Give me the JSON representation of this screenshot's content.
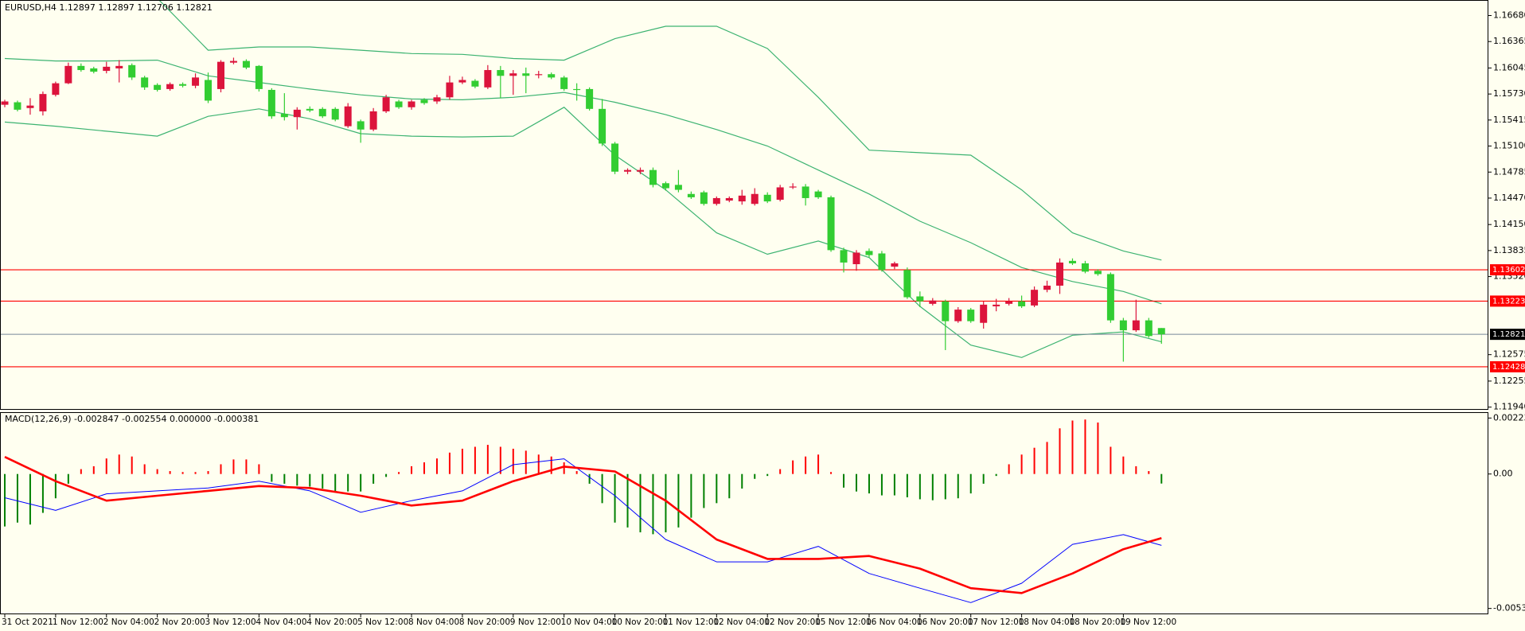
{
  "chart_data": [
    {
      "type": "candlestick",
      "title": "EURUSD,H4  1.12897 1.12897 1.12706 1.12821",
      "categories": [
        "31 Oct 2021",
        null,
        null,
        null,
        "1 Nov 12:00",
        null,
        null,
        null,
        "2 Nov 04:00",
        null,
        null,
        null,
        "2 Nov 20:00",
        null,
        null,
        null,
        "3 Nov 12:00",
        null,
        null,
        null,
        "4 Nov 04:00",
        null,
        null,
        null,
        "4 Nov 20:00",
        null,
        null,
        null,
        "5 Nov 12:00",
        null,
        null,
        null,
        "8 Nov 04:00",
        null,
        null,
        null,
        "8 Nov 20:00",
        null,
        null,
        null,
        "9 Nov 12:00",
        null,
        null,
        null,
        "10 Nov 04:00",
        null,
        null,
        null,
        "10 Nov 20:00",
        null,
        null,
        null,
        "11 Nov 12:00",
        null,
        null,
        null,
        "12 Nov 04:00",
        null,
        null,
        null,
        "12 Nov 20:00",
        null,
        null,
        null,
        "15 Nov 12:00",
        null,
        null,
        null,
        "16 Nov 04:00",
        null,
        null,
        null,
        "16 Nov 20:00",
        null,
        null,
        null,
        "17 Nov 12:00",
        null,
        null,
        null,
        "18 Nov 04:00",
        null,
        null,
        null,
        "18 Nov 20:00",
        null,
        null,
        null,
        "19 Nov 12:00",
        null,
        null,
        null
      ],
      "open": [
        1.156,
        1.1563,
        1.1556,
        1.1552,
        1.1572,
        1.1586,
        1.1607,
        1.1604,
        1.1601,
        1.1604,
        1.1608,
        1.1593,
        1.1584,
        1.1579,
        1.1585,
        1.1583,
        1.159,
        1.1579,
        1.1611,
        1.1613,
        1.1607,
        1.1578,
        1.1549,
        1.1545,
        1.1555,
        1.1555,
        1.1555,
        1.1534,
        1.154,
        1.153,
        1.1552,
        1.1564,
        1.1557,
        1.1566,
        1.1564,
        1.1569,
        1.1587,
        1.1589,
        1.1581,
        1.1602,
        1.1595,
        1.1598,
        1.1596,
        1.1597,
        1.1593,
        1.1579,
        1.1579,
        1.1555,
        1.1513,
        1.1479,
        1.1479,
        1.1481,
        1.1465,
        1.1463,
        1.1452,
        1.1454,
        1.144,
        1.1444,
        1.1443,
        1.144,
        1.1451,
        1.1445,
        1.146,
        1.1461,
        1.1455,
        1.1448,
        1.1384,
        1.1367,
        1.1383,
        1.138,
        1.1364,
        1.136,
        1.1328,
        1.1319,
        1.1322,
        1.1298,
        1.1312,
        1.1296,
        1.1316,
        1.1319,
        1.1322,
        1.1317,
        1.1336,
        1.1341,
        1.1371,
        1.1368,
        1.1359,
        1.1355,
        1.1299,
        1.1287,
        1.1299,
        1.12897
      ],
      "high": [
        1.1566,
        1.1565,
        1.1568,
        1.1576,
        1.1588,
        1.1611,
        1.161,
        1.1606,
        1.1612,
        1.1614,
        1.161,
        1.1595,
        1.1586,
        1.1587,
        1.1587,
        1.1598,
        1.1599,
        1.1614,
        1.1617,
        1.1615,
        1.1608,
        1.158,
        1.1574,
        1.1557,
        1.1558,
        1.1557,
        1.1557,
        1.1562,
        1.1542,
        1.1556,
        1.1572,
        1.1566,
        1.1566,
        1.1568,
        1.1572,
        1.1595,
        1.1594,
        1.1591,
        1.1608,
        1.1607,
        1.1602,
        1.1605,
        1.1601,
        1.1599,
        1.1595,
        1.1586,
        1.1581,
        1.1567,
        1.1515,
        1.1483,
        1.1484,
        1.1484,
        1.1467,
        1.1481,
        1.1455,
        1.1456,
        1.1449,
        1.1449,
        1.1457,
        1.1459,
        1.1454,
        1.1463,
        1.1465,
        1.1464,
        1.1457,
        1.145,
        1.1387,
        1.1384,
        1.1386,
        1.1383,
        1.137,
        1.1363,
        1.1334,
        1.1326,
        1.1324,
        1.1315,
        1.1314,
        1.1322,
        1.1325,
        1.1326,
        1.1329,
        1.134,
        1.1347,
        1.1374,
        1.1374,
        1.1371,
        1.1361,
        1.1357,
        1.1302,
        1.1324,
        1.1302,
        1.12897
      ],
      "low": [
        1.1557,
        1.1552,
        1.1548,
        1.1547,
        1.157,
        1.1585,
        1.16,
        1.1598,
        1.1598,
        1.1587,
        1.159,
        1.1578,
        1.1576,
        1.1577,
        1.1581,
        1.158,
        1.1562,
        1.1575,
        1.1609,
        1.1603,
        1.1576,
        1.1543,
        1.1541,
        1.153,
        1.1551,
        1.1544,
        1.154,
        1.1532,
        1.1514,
        1.1528,
        1.155,
        1.1555,
        1.1554,
        1.156,
        1.1561,
        1.1566,
        1.1585,
        1.158,
        1.1579,
        1.1568,
        1.1572,
        1.1574,
        1.1592,
        1.1591,
        1.1577,
        1.1565,
        1.1553,
        1.151,
        1.1476,
        1.1476,
        1.1476,
        1.146,
        1.1456,
        1.1454,
        1.1446,
        1.1438,
        1.1438,
        1.1442,
        1.1439,
        1.1438,
        1.1441,
        1.1443,
        1.1458,
        1.1438,
        1.1446,
        1.1382,
        1.1357,
        1.1359,
        1.1375,
        1.1358,
        1.1361,
        1.1325,
        1.1315,
        1.1317,
        1.1263,
        1.1296,
        1.1296,
        1.1289,
        1.131,
        1.1317,
        1.1314,
        1.1315,
        1.1333,
        1.1331,
        1.1366,
        1.1356,
        1.1353,
        1.1296,
        1.1249,
        1.1285,
        1.1278,
        1.12706
      ],
      "close": [
        1.1564,
        1.1554,
        1.1559,
        1.1573,
        1.1586,
        1.1607,
        1.1602,
        1.16,
        1.1606,
        1.1607,
        1.1593,
        1.1581,
        1.1578,
        1.1585,
        1.1583,
        1.1593,
        1.1565,
        1.1612,
        1.1613,
        1.1605,
        1.1579,
        1.1546,
        1.1545,
        1.1554,
        1.1553,
        1.1546,
        1.1542,
        1.1558,
        1.153,
        1.1552,
        1.1569,
        1.1557,
        1.1564,
        1.1562,
        1.1569,
        1.1587,
        1.159,
        1.1582,
        1.1602,
        1.1595,
        1.1598,
        1.1595,
        1.1597,
        1.1593,
        1.1579,
        1.1578,
        1.1555,
        1.1513,
        1.1479,
        1.1481,
        1.1481,
        1.1463,
        1.1459,
        1.1457,
        1.1448,
        1.144,
        1.1447,
        1.1447,
        1.145,
        1.1452,
        1.1443,
        1.146,
        1.1461,
        1.1447,
        1.1448,
        1.1384,
        1.1369,
        1.1381,
        1.1378,
        1.136,
        1.1368,
        1.1327,
        1.1322,
        1.1323,
        1.1298,
        1.1312,
        1.1298,
        1.1318,
        1.1318,
        1.1322,
        1.1316,
        1.1336,
        1.1341,
        1.1369,
        1.1368,
        1.1358,
        1.1355,
        1.1299,
        1.1287,
        1.1299,
        1.128,
        1.12821
      ],
      "up_color": "#dc143c",
      "down_color": "#32cd32",
      "bands": {
        "x": [
          0,
          4,
          8,
          12,
          16,
          20,
          24,
          28,
          32,
          36,
          40,
          44,
          48,
          52,
          56,
          60,
          64,
          68,
          72,
          76,
          80,
          84,
          88,
          91
        ],
        "color": "#3cb371",
        "lines": [
          [
            1.1692,
            1.1694,
            1.1693,
            1.1689,
            1.1626,
            1.163,
            1.163,
            1.1626,
            1.1622,
            1.1621,
            1.1616,
            1.1614,
            1.164,
            1.1655,
            1.1655,
            1.1628,
            1.1569,
            1.1505,
            1.1502,
            1.1499,
            1.1457,
            1.1405,
            1.1383,
            1.1372
          ],
          [
            1.1616,
            1.1613,
            1.1613,
            1.1614,
            1.1595,
            1.1587,
            1.1579,
            1.1572,
            1.1567,
            1.1566,
            1.1569,
            1.1575,
            1.1563,
            1.1548,
            1.153,
            1.151,
            1.1481,
            1.1452,
            1.1419,
            1.1393,
            1.1363,
            1.1346,
            1.1334,
            1.1319
          ],
          [
            1.1539,
            1.1534,
            1.1528,
            1.1522,
            1.1546,
            1.1555,
            1.1543,
            1.1525,
            1.1522,
            1.1521,
            1.1522,
            1.1557,
            1.1499,
            1.1457,
            1.1405,
            1.1379,
            1.1395,
            1.1375,
            1.1316,
            1.1269,
            1.1254,
            1.1281,
            1.1285,
            1.1273
          ]
        ]
      },
      "levels": [
        {
          "value": 1.13602,
          "color": "#ff0000"
        },
        {
          "value": 1.13223,
          "color": "#ff0000"
        },
        {
          "value": 1.12428,
          "color": "#ff0000"
        }
      ],
      "current_line_color": "#778899",
      "ylim": [
        1.11917,
        1.16868
      ],
      "yticks": [
        {
          "value": 1.1668,
          "label": "1.16680"
        },
        1.16365,
        1.16045,
        {
          "value": 1.1573,
          "label": "1.15730"
        },
        1.15415,
        {
          "value": 1.151,
          "label": "1.15100"
        },
        1.14785,
        {
          "value": 1.1447,
          "label": "1.14470"
        },
        {
          "value": 1.1415,
          "label": "1.14150"
        },
        1.13835,
        {
          "value": 1.1352,
          "label": "1.13520"
        },
        1.12575,
        1.12255,
        {
          "value": 1.1194,
          "label": "1.11940"
        }
      ]
    },
    {
      "type": "macd",
      "title": "MACD(12,26,9) -0.002847 -0.002554 0.000000 -0.000381",
      "histogram": [
        -0.002093,
        -0.001938,
        -0.002016,
        -0.00155,
        -0.000969,
        -0.000388,
        0.000194,
        0.00031,
        0.00062,
        0.000775,
        0.000698,
        0.000388,
        0.000194,
        0.000116,
        7.8e-05,
        7.8e-05,
        0.000116,
        0.000388,
        0.000581,
        0.000581,
        0.000388,
        -0.00031,
        -0.000388,
        -0.000465,
        -0.000504,
        -0.000581,
        -0.000698,
        -0.000698,
        -0.000698,
        -0.000388,
        -0.000116,
        7.8e-05,
        0.00031,
        0.000465,
        0.00062,
        0.000853,
        0.001008,
        0.001085,
        0.001163,
        0.001085,
        0.001008,
        0.00093,
        0.000775,
        0.000698,
        0.000465,
        0.000116,
        -0.000388,
        -0.001163,
        -0.001938,
        -0.002132,
        -0.002326,
        -0.002403,
        -0.002326,
        -0.002132,
        -0.001744,
        -0.001357,
        -0.001163,
        -0.000969,
        -0.000581,
        -0.000194,
        -7.8e-05,
        0.000194,
        0.000543,
        0.000698,
        0.000775,
        7.8e-05,
        -0.000543,
        -0.000698,
        -0.000775,
        -0.000853,
        -0.000853,
        -0.00093,
        -0.001008,
        -0.001047,
        -0.001008,
        -0.000969,
        -0.000775,
        -0.000388,
        -7.8e-05,
        0.000388,
        0.000775,
        0.001047,
        0.001279,
        0.001822,
        0.002132,
        0.002171,
        0.002054,
        0.001085,
        0.000698,
        0.00031,
        0.000116,
        -0.000381
      ],
      "up_color": "#ff0000",
      "down_color": "#008000",
      "x": [
        0,
        4,
        8,
        12,
        16,
        20,
        24,
        28,
        32,
        36,
        40,
        44,
        48,
        52,
        56,
        60,
        64,
        68,
        72,
        76,
        80,
        84,
        88,
        91
      ],
      "series": [
        {
          "color": "#0000ff",
          "values": [
            -0.000946,
            -0.00145,
            -0.000791,
            -0.000674,
            -0.000558,
            -0.000287,
            -0.000674,
            -0.001527,
            -0.001062,
            -0.000674,
            0.000372,
            0.000605,
            -0.000868,
            -0.002612,
            -0.003504,
            -0.003504,
            -0.002884,
            -0.003969,
            -0.004554,
            -0.005131,
            -0.004357,
            -0.002806,
            -0.002419,
            -0.002847
          ]
        },
        {
          "color": "#ff0000",
          "values": [
            0.000682,
            -0.000287,
            -0.001062,
            -0.000868,
            -0.000674,
            -0.000481,
            -0.000558,
            -0.000868,
            -0.001256,
            -0.001062,
            -0.000287,
            0.000295,
            0.000101,
            -0.001062,
            -0.002612,
            -0.003388,
            -0.003388,
            -0.003271,
            -0.003775,
            -0.004554,
            -0.004747,
            -0.003969,
            -0.003,
            -0.002554
          ]
        }
      ],
      "ylim": [
        -0.005596,
        0.002466
      ],
      "yticks": [
        0.002233,
        {
          "value": 0,
          "label": "0.00"
        },
        -0.005363
      ]
    }
  ]
}
